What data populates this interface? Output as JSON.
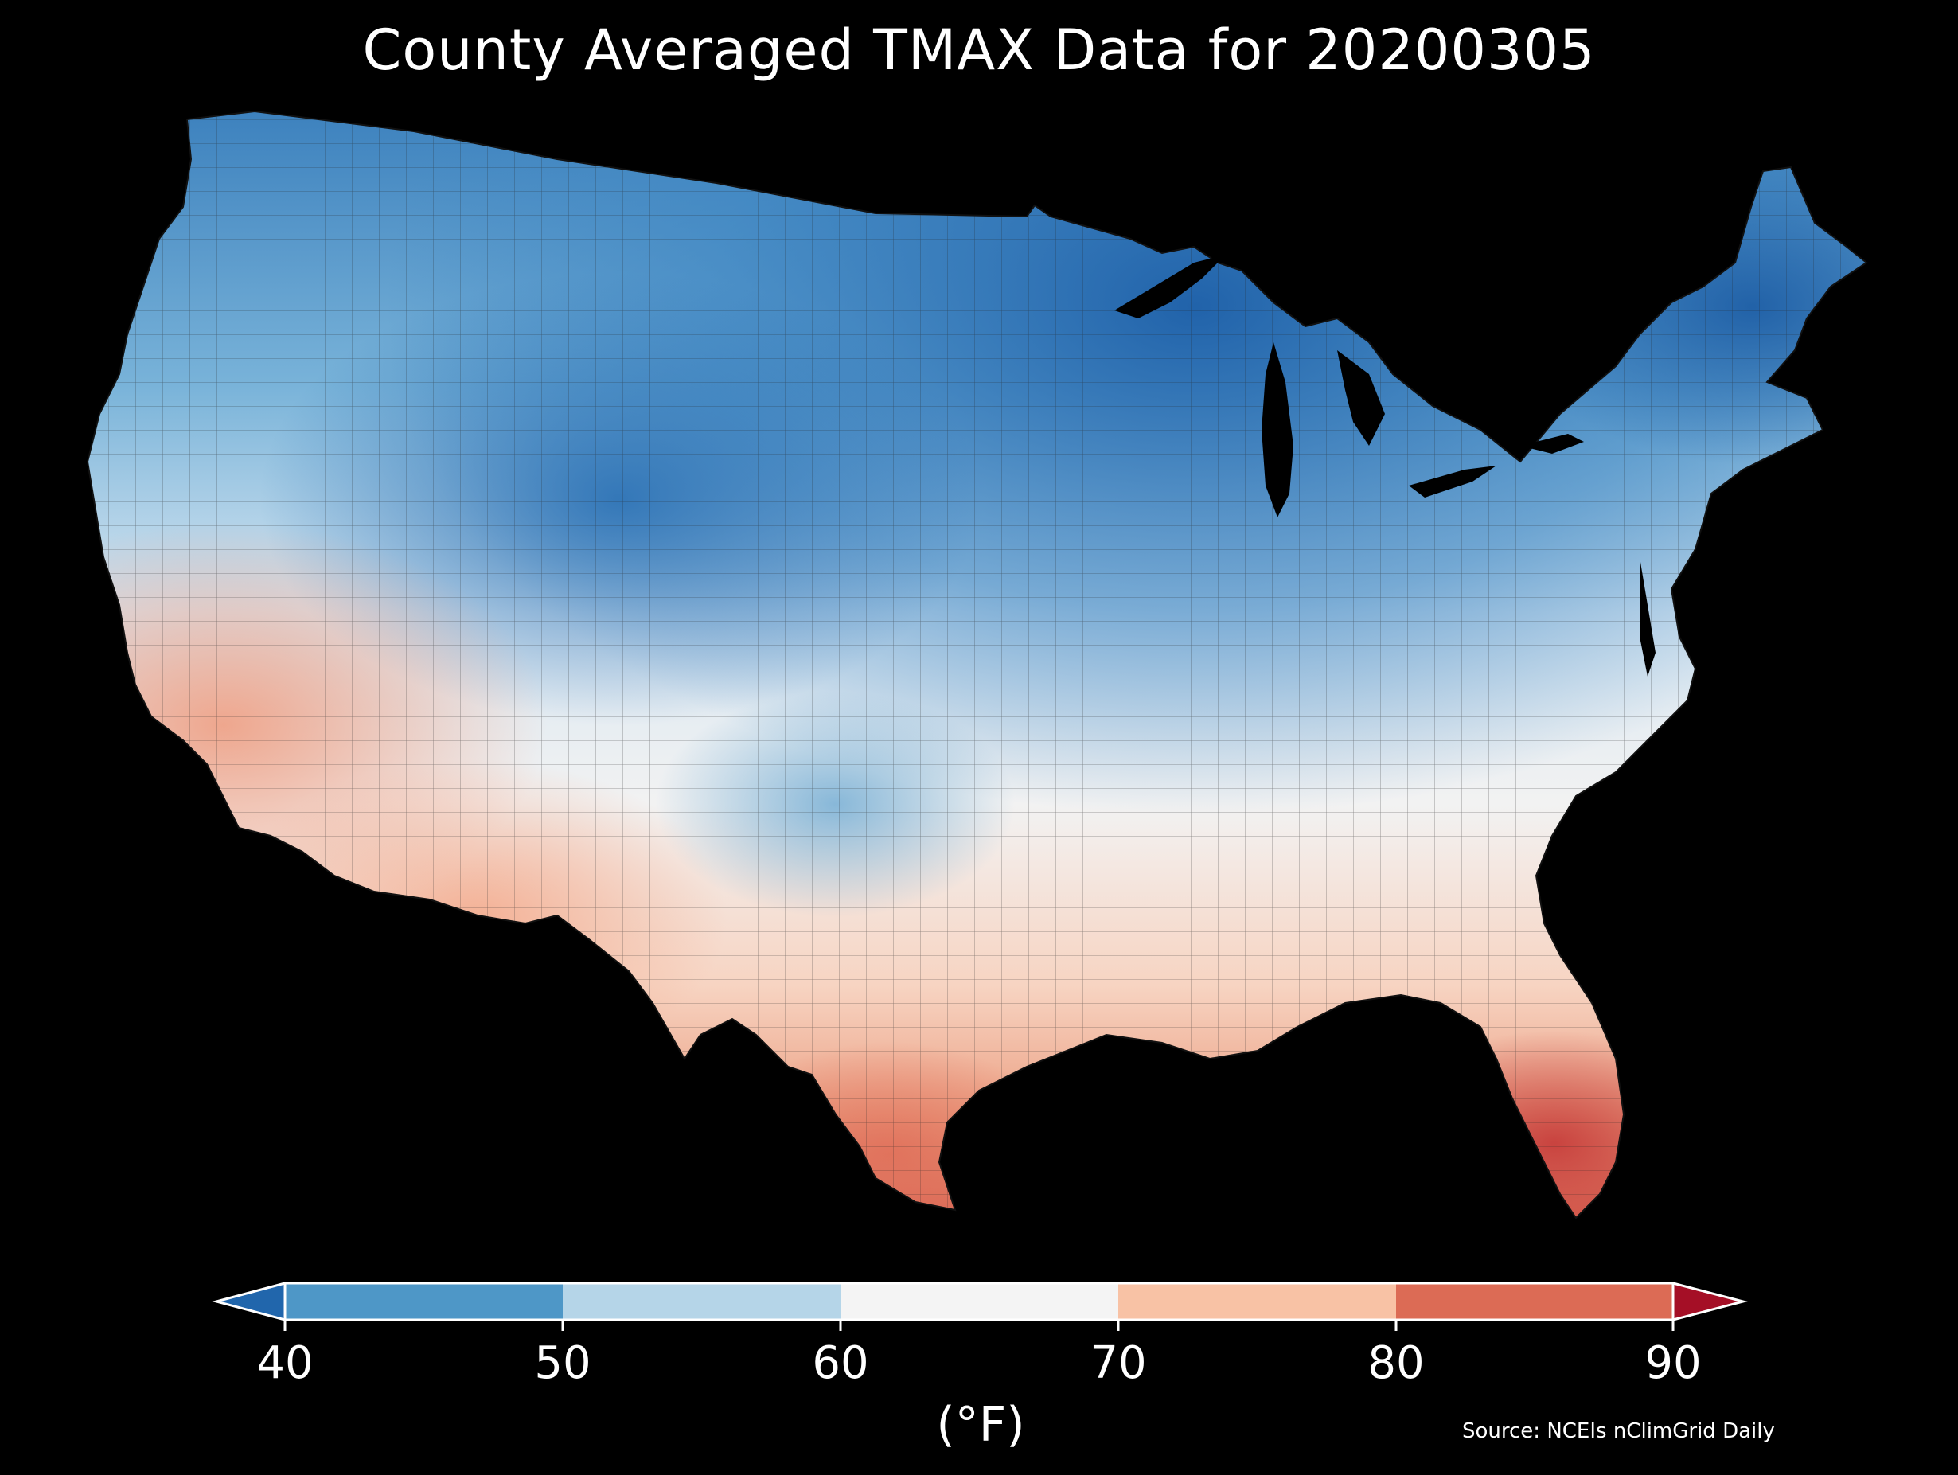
{
  "title": "County Averaged TMAX Data for 20200305",
  "colorbar": {
    "ticks": [
      "40",
      "50",
      "60",
      "70",
      "80",
      "90"
    ],
    "unit": "(°F)",
    "bins": [
      {
        "range": "<40",
        "color": "#2166ac"
      },
      {
        "range": "40-50",
        "color": "#4e97c7"
      },
      {
        "range": "50-60",
        "color": "#b5d5e8"
      },
      {
        "range": "60-70",
        "color": "#f4f4f4"
      },
      {
        "range": "70-80",
        "color": "#f8c2a5"
      },
      {
        "range": "80-90",
        "color": "#dc6b55"
      },
      {
        "range": ">90",
        "color": "#a50f26"
      }
    ]
  },
  "source": "Source: NCEIs nClimGrid Daily",
  "map": {
    "background": "#000000",
    "border_color": "#1a1a1a"
  }
}
